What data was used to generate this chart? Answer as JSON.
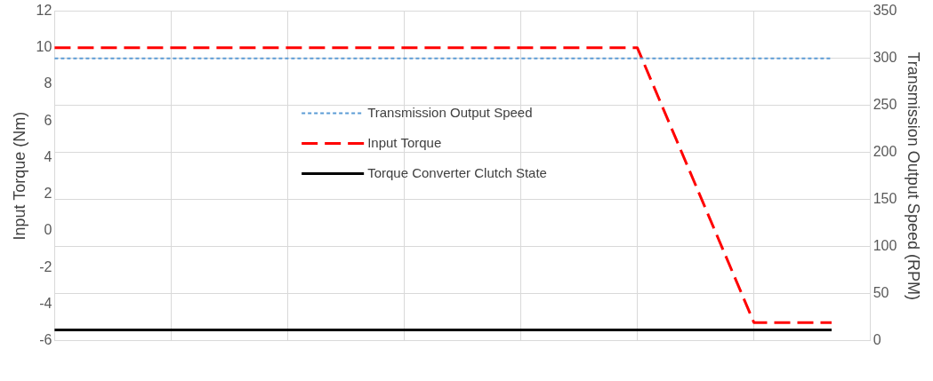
{
  "chart_data": {
    "type": "line",
    "ylabel": "Input Torque (Nm)",
    "y2label": "Transmission Output Speed (RPM)",
    "categories": [
      null,
      null,
      null,
      null,
      null,
      null,
      null,
      null,
      null,
      null,
      null,
      null,
      null,
      null,
      null,
      null,
      null,
      null,
      null,
      null,
      null,
      null
    ],
    "ylim": [
      -6,
      12
    ],
    "yticks": [
      -6,
      -4,
      -2,
      0,
      2,
      4,
      6,
      8,
      10,
      12
    ],
    "y2lim": [
      0,
      350
    ],
    "y2ticks": [
      0,
      50,
      100,
      150,
      200,
      250,
      300,
      350
    ],
    "grid": true,
    "legend": "top",
    "marker": "none",
    "series": [
      {
        "name": "Transmission Output Speed",
        "color": "#5b9bd5",
        "axis": "y2",
        "line_style": "dotted",
        "values": [
          300,
          300,
          300,
          300,
          300,
          300,
          300,
          300,
          300,
          300,
          300,
          300,
          300,
          300,
          300,
          300,
          300,
          300,
          300,
          300,
          300,
          null
        ]
      },
      {
        "name": "Input Torque",
        "color": "#ff0000",
        "axis": "y",
        "line_style": "dashed",
        "values": [
          10,
          10,
          10,
          10,
          10,
          10,
          10,
          10,
          10,
          10,
          10,
          10,
          10,
          10,
          10,
          10,
          5,
          0,
          -5,
          -5,
          -5,
          null
        ]
      },
      {
        "name": "Torque Converter Clutch State",
        "color": "#000000",
        "axis": "y",
        "line_style": "solid",
        "values": [
          -5.4,
          -5.4,
          -5.4,
          -5.4,
          -5.4,
          -5.4,
          -5.4,
          -5.4,
          -5.4,
          -5.4,
          -5.4,
          -5.4,
          -5.4,
          -5.4,
          -5.4,
          -5.4,
          -5.4,
          -5.4,
          -5.4,
          -5.4,
          -5.4,
          null
        ]
      }
    ]
  }
}
